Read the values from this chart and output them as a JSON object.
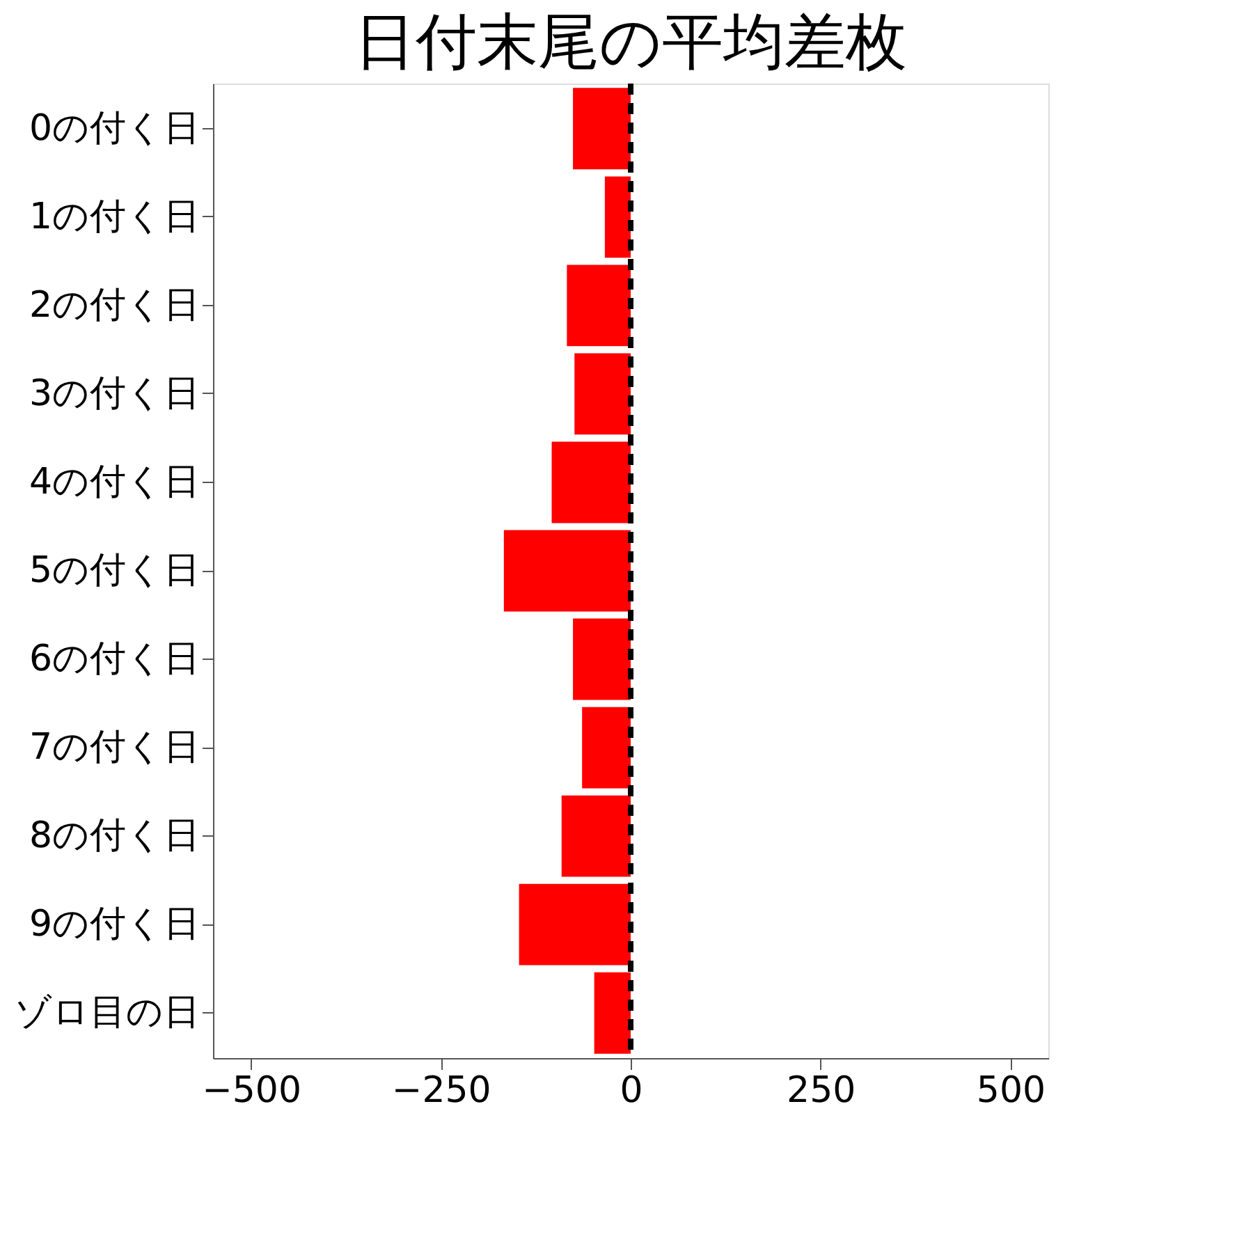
{
  "chart_data": {
    "type": "bar",
    "orientation": "horizontal",
    "title": "日付末尾の平均差枚",
    "categories": [
      "0の付く日",
      "1の付く日",
      "2の付く日",
      "3の付く日",
      "4の付く日",
      "5の付く日",
      "6の付く日",
      "7の付く日",
      "8の付く日",
      "9の付く日",
      "ゾロ目の日"
    ],
    "values": [
      -76,
      -34,
      -84,
      -74,
      -104,
      -167,
      -76,
      -64,
      -91,
      -147,
      -48
    ],
    "color": "#ff0000",
    "xlim": [
      -550,
      550
    ],
    "xticks": [
      -500,
      -250,
      0,
      250,
      500
    ],
    "grid": false,
    "ref_lines": [
      {
        "axis": "x",
        "value": 0,
        "color": "#000000",
        "line_style": "dashed"
      }
    ]
  }
}
